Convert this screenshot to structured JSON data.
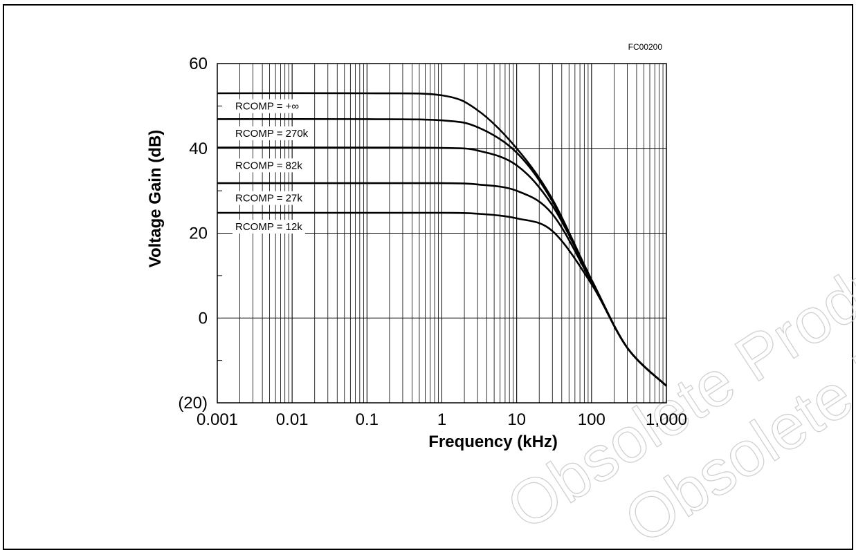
{
  "chart_data": {
    "type": "line",
    "title": "",
    "figure_code": "FC00200",
    "xlabel": "Frequency (kHz)",
    "ylabel": "Voltage Gain (dB)",
    "x_scale": "log",
    "xlim": [
      0.001,
      1000
    ],
    "ylim": [
      -20,
      60
    ],
    "x_ticks": [
      0.001,
      0.01,
      0.1,
      1,
      10,
      100,
      1000
    ],
    "x_tick_labels": [
      "0.001",
      "0.01",
      "0.1",
      "1",
      "10",
      "100",
      "1,000"
    ],
    "y_ticks": [
      -20,
      0,
      20,
      40,
      60
    ],
    "y_tick_labels": [
      "(20)",
      "0",
      "20",
      "40",
      "60"
    ],
    "grid": true,
    "series": [
      {
        "name": "RCOMP = +∞",
        "x": [
          0.001,
          0.1,
          1,
          3,
          10,
          30,
          100,
          300,
          1000
        ],
        "y": [
          53,
          53,
          52.5,
          49,
          40,
          28,
          9,
          -7,
          -16
        ]
      },
      {
        "name": "RCOMP = 270k",
        "x": [
          0.001,
          0.1,
          1,
          3,
          10,
          30,
          100,
          300,
          1000
        ],
        "y": [
          46.9,
          46.9,
          46.6,
          45,
          39,
          27.5,
          9,
          -7,
          -16
        ]
      },
      {
        "name": "RCOMP = 82k",
        "x": [
          0.001,
          0.1,
          1,
          3,
          10,
          30,
          100,
          300,
          1000
        ],
        "y": [
          40.2,
          40.2,
          40.1,
          39.5,
          36,
          26.5,
          9,
          -7,
          -16
        ]
      },
      {
        "name": "RCOMP = 27k",
        "x": [
          0.001,
          0.1,
          1,
          3,
          10,
          30,
          100,
          300,
          1000
        ],
        "y": [
          31.8,
          31.8,
          31.8,
          31.5,
          30,
          24.5,
          8.5,
          -7,
          -16
        ]
      },
      {
        "name": "RCOMP = 12k",
        "x": [
          0.001,
          0.1,
          1,
          3,
          10,
          30,
          100,
          300,
          1000
        ],
        "y": [
          24.8,
          24.8,
          24.8,
          24.6,
          23.5,
          20.5,
          8,
          -7,
          -16
        ]
      }
    ],
    "label_order": [
      "RCOMP = +∞",
      "RCOMP = 270k",
      "RCOMP = 82k",
      "RCOMP = 27k",
      "RCOMP = 12k"
    ],
    "line_color": "#000000",
    "grid_color": "#000000"
  },
  "watermark": {
    "lines": [
      "Obsolete Product(s)",
      "Obsolete Product(s)"
    ],
    "color": "#d0d0d0"
  }
}
